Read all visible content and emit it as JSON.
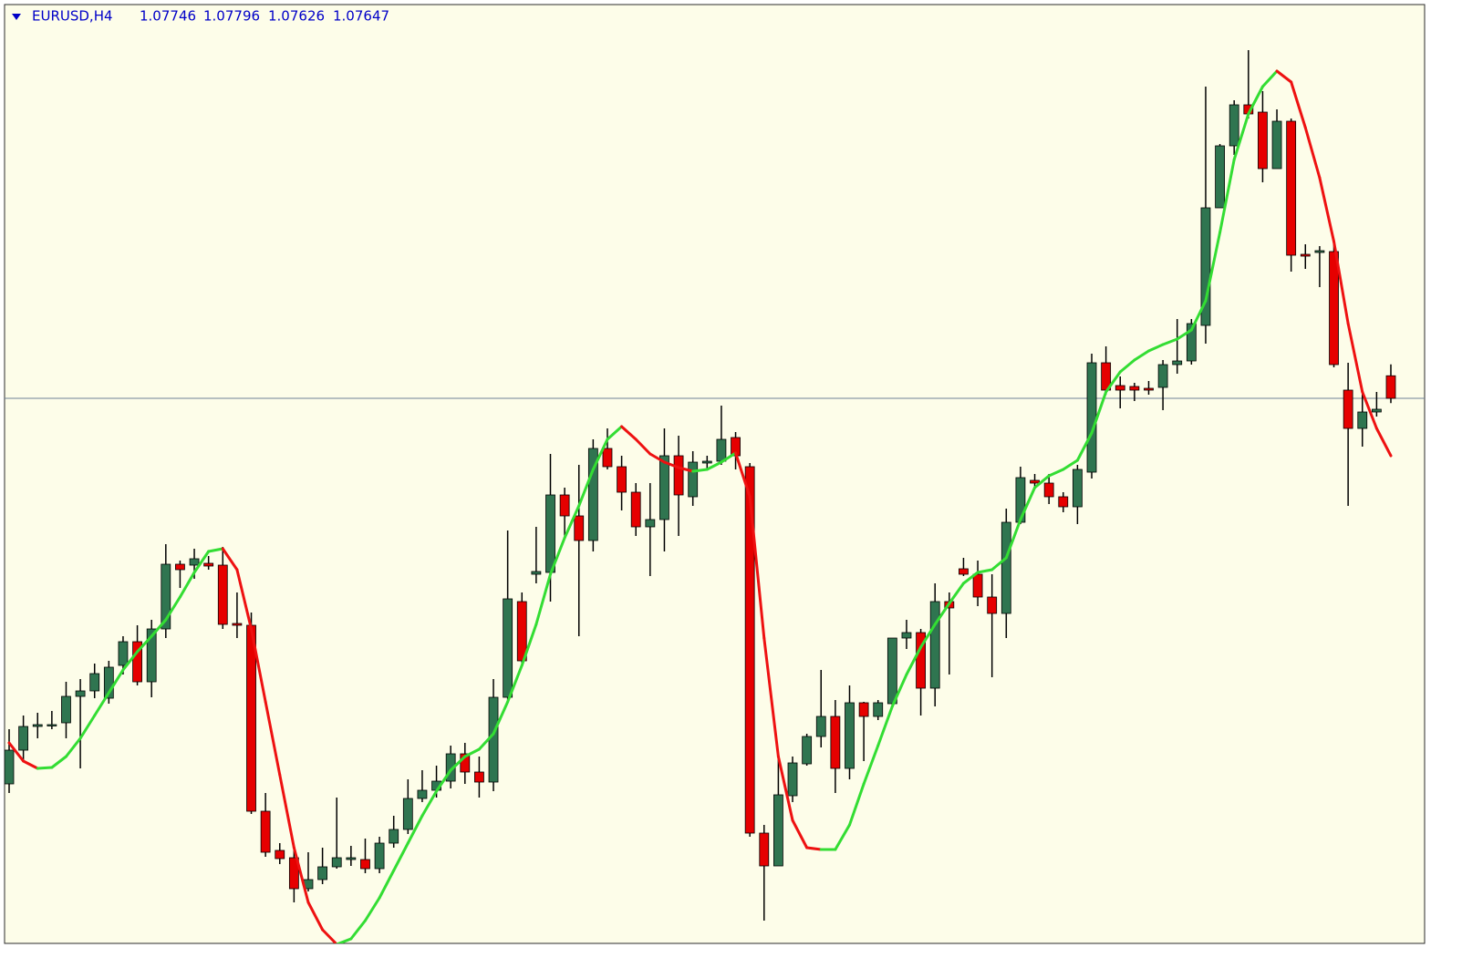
{
  "chart_data": {
    "type": "candlestick",
    "title": "EURUSD,H4",
    "ylim": [
      1.05255,
      1.09375
    ],
    "grid": false,
    "bull_color": "#2f7550",
    "bear_color": "#e60000",
    "line_rise_color": "#33dd33",
    "line_fall_color": "#ee1111",
    "open": [
      1.05955,
      1.06103,
      1.06207,
      1.06211,
      1.06223,
      1.06339,
      1.06363,
      1.06331,
      1.06475,
      1.06579,
      1.06403,
      1.06635,
      1.06919,
      1.06915,
      1.06923,
      1.06915,
      1.06659,
      1.06651,
      1.05835,
      1.05663,
      1.05631,
      1.05495,
      1.05535,
      1.05591,
      1.05623,
      1.05623,
      1.05583,
      1.05695,
      1.05755,
      1.05891,
      1.05927,
      1.05967,
      1.06087,
      1.06007,
      1.05963,
      1.06335,
      1.06755,
      1.06875,
      1.06883,
      1.07223,
      1.07131,
      1.07023,
      1.07427,
      1.07347,
      1.07235,
      1.07083,
      1.07115,
      1.07395,
      1.07215,
      1.07363,
      1.07371,
      1.07475,
      1.07347,
      1.05739,
      1.05595,
      1.05903,
      1.06043,
      1.06163,
      1.06251,
      1.06023,
      1.06311,
      1.06251,
      1.06307,
      1.06595,
      1.06619,
      1.06375,
      1.06755,
      1.06899,
      1.06875,
      1.06775,
      1.06703,
      1.07103,
      1.07287,
      1.07275,
      1.07215,
      1.07171,
      1.07323,
      1.07803,
      1.07703,
      1.07699,
      1.07691,
      1.07695,
      1.07795,
      1.07811,
      1.07967,
      1.08483,
      1.08755,
      1.08935,
      1.08903,
      1.08655,
      1.08863,
      1.08279,
      1.08287,
      1.08291,
      1.07683,
      1.07515,
      1.07587,
      1.07746
    ],
    "high": [
      1.06195,
      1.06255,
      1.06267,
      1.06275,
      1.06403,
      1.06415,
      1.06483,
      1.06495,
      1.06603,
      1.06651,
      1.06675,
      1.07007,
      1.06935,
      1.06987,
      1.06955,
      1.06995,
      1.06795,
      1.06707,
      1.05915,
      1.05695,
      1.05675,
      1.05655,
      1.05675,
      1.05895,
      1.05683,
      1.05715,
      1.05723,
      1.05815,
      1.05975,
      1.06015,
      1.06035,
      1.06123,
      1.06135,
      1.06075,
      1.06415,
      1.07067,
      1.06795,
      1.07083,
      1.07403,
      1.07255,
      1.07355,
      1.07467,
      1.07515,
      1.07395,
      1.07275,
      1.07275,
      1.07515,
      1.07483,
      1.07415,
      1.07395,
      1.07615,
      1.07499,
      1.07363,
      1.05775,
      1.06075,
      1.06075,
      1.06175,
      1.06455,
      1.06323,
      1.06387,
      1.06315,
      1.06323,
      1.06595,
      1.06675,
      1.06635,
      1.06835,
      1.06795,
      1.06947,
      1.06935,
      1.06875,
      1.07163,
      1.07347,
      1.07315,
      1.07315,
      1.07235,
      1.07355,
      1.07843,
      1.07875,
      1.07743,
      1.07715,
      1.07723,
      1.07815,
      1.07995,
      1.07995,
      1.09015,
      1.08763,
      1.08955,
      1.09175,
      1.08995,
      1.08915,
      1.08875,
      1.08323,
      1.08315,
      1.08323,
      1.07803,
      1.07675,
      1.07675,
      1.07796
    ],
    "low": [
      1.05915,
      1.06055,
      1.06155,
      1.06195,
      1.06155,
      1.06023,
      1.06331,
      1.06307,
      1.06435,
      1.06387,
      1.06335,
      1.06595,
      1.06815,
      1.06855,
      1.06895,
      1.06635,
      1.06595,
      1.05823,
      1.05635,
      1.05603,
      1.05435,
      1.05483,
      1.05515,
      1.05583,
      1.05595,
      1.05563,
      1.05563,
      1.05675,
      1.05735,
      1.05875,
      1.05895,
      1.05935,
      1.05955,
      1.05895,
      1.05923,
      1.06315,
      1.06475,
      1.06835,
      1.06755,
      1.07035,
      1.06603,
      1.06975,
      1.07335,
      1.07155,
      1.07043,
      1.06867,
      1.06975,
      1.07043,
      1.07175,
      1.07335,
      1.07355,
      1.07335,
      1.05723,
      1.05355,
      1.05595,
      1.05875,
      1.06035,
      1.06115,
      1.05915,
      1.05975,
      1.06055,
      1.06235,
      1.06295,
      1.06547,
      1.06255,
      1.06295,
      1.06435,
      1.06867,
      1.06735,
      1.06423,
      1.06595,
      1.07095,
      1.07255,
      1.07183,
      1.07147,
      1.07095,
      1.07295,
      1.07663,
      1.07603,
      1.07635,
      1.07663,
      1.07595,
      1.07755,
      1.07795,
      1.07887,
      1.08483,
      1.08715,
      1.08875,
      1.08595,
      1.08655,
      1.08203,
      1.08215,
      1.08135,
      1.07783,
      1.07175,
      1.07435,
      1.07567,
      1.07626
    ],
    "close": [
      1.06103,
      1.06207,
      1.06215,
      1.06215,
      1.06339,
      1.06363,
      1.06439,
      1.06467,
      1.06579,
      1.06403,
      1.06635,
      1.06919,
      1.06895,
      1.06943,
      1.06911,
      1.06655,
      1.06651,
      1.05835,
      1.05655,
      1.05627,
      1.05495,
      1.05535,
      1.05591,
      1.05631,
      1.05631,
      1.05583,
      1.05695,
      1.05755,
      1.05891,
      1.05927,
      1.05967,
      1.06087,
      1.06007,
      1.05963,
      1.06335,
      1.06767,
      1.06495,
      1.06887,
      1.07223,
      1.07131,
      1.07023,
      1.07427,
      1.07347,
      1.07235,
      1.07083,
      1.07115,
      1.07395,
      1.07223,
      1.07367,
      1.07371,
      1.07467,
      1.07395,
      1.05739,
      1.05595,
      1.05907,
      1.06047,
      1.06163,
      1.06251,
      1.06023,
      1.06311,
      1.06251,
      1.06311,
      1.06595,
      1.06619,
      1.06375,
      1.06755,
      1.06727,
      1.06875,
      1.06775,
      1.06703,
      1.07103,
      1.07299,
      1.07275,
      1.07215,
      1.07171,
      1.07335,
      1.07803,
      1.07683,
      1.07683,
      1.07683,
      1.07683,
      1.07795,
      1.07811,
      1.07975,
      1.08483,
      1.08755,
      1.08935,
      1.08895,
      1.08655,
      1.08863,
      1.08275,
      1.08271,
      1.08295,
      1.07795,
      1.07515,
      1.07587,
      1.07599,
      1.07647
    ],
    "line_values": [
      1.06135,
      1.06055,
      1.06023,
      1.06027,
      1.06075,
      1.06155,
      1.06255,
      1.06355,
      1.06455,
      1.06535,
      1.06603,
      1.06675,
      1.06775,
      1.06883,
      1.06975,
      1.06987,
      1.06895,
      1.06635,
      1.06315,
      1.05995,
      1.05675,
      1.05435,
      1.05315,
      1.05251,
      1.05275,
      1.05355,
      1.05455,
      1.05575,
      1.05695,
      1.05815,
      1.05923,
      1.06015,
      1.06075,
      1.06107,
      1.06175,
      1.06315,
      1.06475,
      1.06655,
      1.06875,
      1.07035,
      1.07175,
      1.07335,
      1.07467,
      1.07523,
      1.07467,
      1.07403,
      1.07367,
      1.07343,
      1.07327,
      1.07335,
      1.07367,
      1.07407,
      1.07215,
      1.06595,
      1.06075,
      1.05795,
      1.05675,
      1.05667,
      1.05667,
      1.05775,
      1.05955,
      1.06123,
      1.06295,
      1.06435,
      1.06555,
      1.06655,
      1.06747,
      1.06835,
      1.06883,
      1.06895,
      1.06947,
      1.07115,
      1.07255,
      1.07307,
      1.07335,
      1.07375,
      1.07495,
      1.07675,
      1.07763,
      1.07815,
      1.07855,
      1.07883,
      1.07907,
      1.07947,
      1.08075,
      1.08375,
      1.08695,
      1.08895,
      1.09015,
      1.09083,
      1.09035,
      1.08835,
      1.08615,
      1.08335,
      1.07975,
      1.07675,
      1.07515,
      1.07395
    ]
  }
}
